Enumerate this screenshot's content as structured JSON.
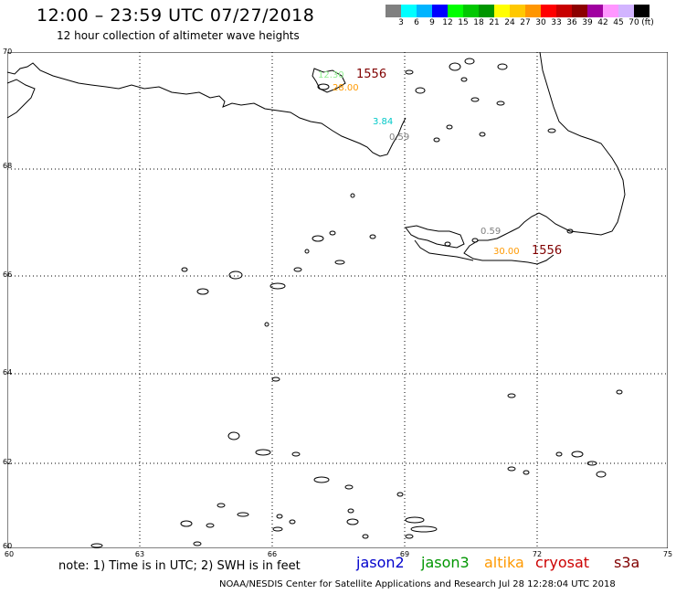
{
  "header": {
    "title": "12:00 – 23:59 UTC 07/27/2018",
    "subtitle": "12 hour collection of altimeter wave heights"
  },
  "color_scale": {
    "colors": [
      "#808080",
      "#00ffff",
      "#00b4ff",
      "#0000ff",
      "#00ff00",
      "#00c800",
      "#009600",
      "#ffff00",
      "#ffc800",
      "#ff9600",
      "#ff0000",
      "#c80000",
      "#8c0000",
      "#a000a0",
      "#ff96ff",
      "#d2b4ff",
      "#000000"
    ],
    "labels": [
      "3",
      "6",
      "9",
      "12",
      "15",
      "18",
      "21",
      "24",
      "27",
      "30",
      "33",
      "36",
      "39",
      "42",
      "45",
      "70",
      "(ft)"
    ]
  },
  "axes": {
    "y_ticks": [
      "70",
      "68",
      "66",
      "64",
      "62",
      "60"
    ],
    "x_ticks": [
      "60",
      "63",
      "66",
      "69",
      "72",
      "75"
    ]
  },
  "observations": [
    {
      "text": "12.30",
      "color": "#90ee90"
    },
    {
      "text": "1556",
      "color": "#800000"
    },
    {
      "text": "28.00",
      "color": "#ff9900"
    },
    {
      "text": "3.84",
      "color": "#00c8c8"
    },
    {
      "text": "0.59",
      "color": "#808080"
    },
    {
      "text": "0.59",
      "color": "#808080"
    },
    {
      "text": "30.00",
      "color": "#ff9900"
    },
    {
      "text": "1556",
      "color": "#800000"
    }
  ],
  "footer": {
    "note": "note:  1) Time is in UTC;  2) SWH is in feet",
    "credit": "NOAA/NESDIS Center for Satellite Applications and Research    Jul 28 12:28:04 UTC 2018"
  },
  "legend": [
    {
      "text": "jason2",
      "color": "#0000cc"
    },
    {
      "text": "jason3",
      "color": "#009600"
    },
    {
      "text": "altika",
      "color": "#ff9900"
    },
    {
      "text": "cryosat",
      "color": "#cc0000"
    },
    {
      "text": "s3a",
      "color": "#800000"
    }
  ]
}
